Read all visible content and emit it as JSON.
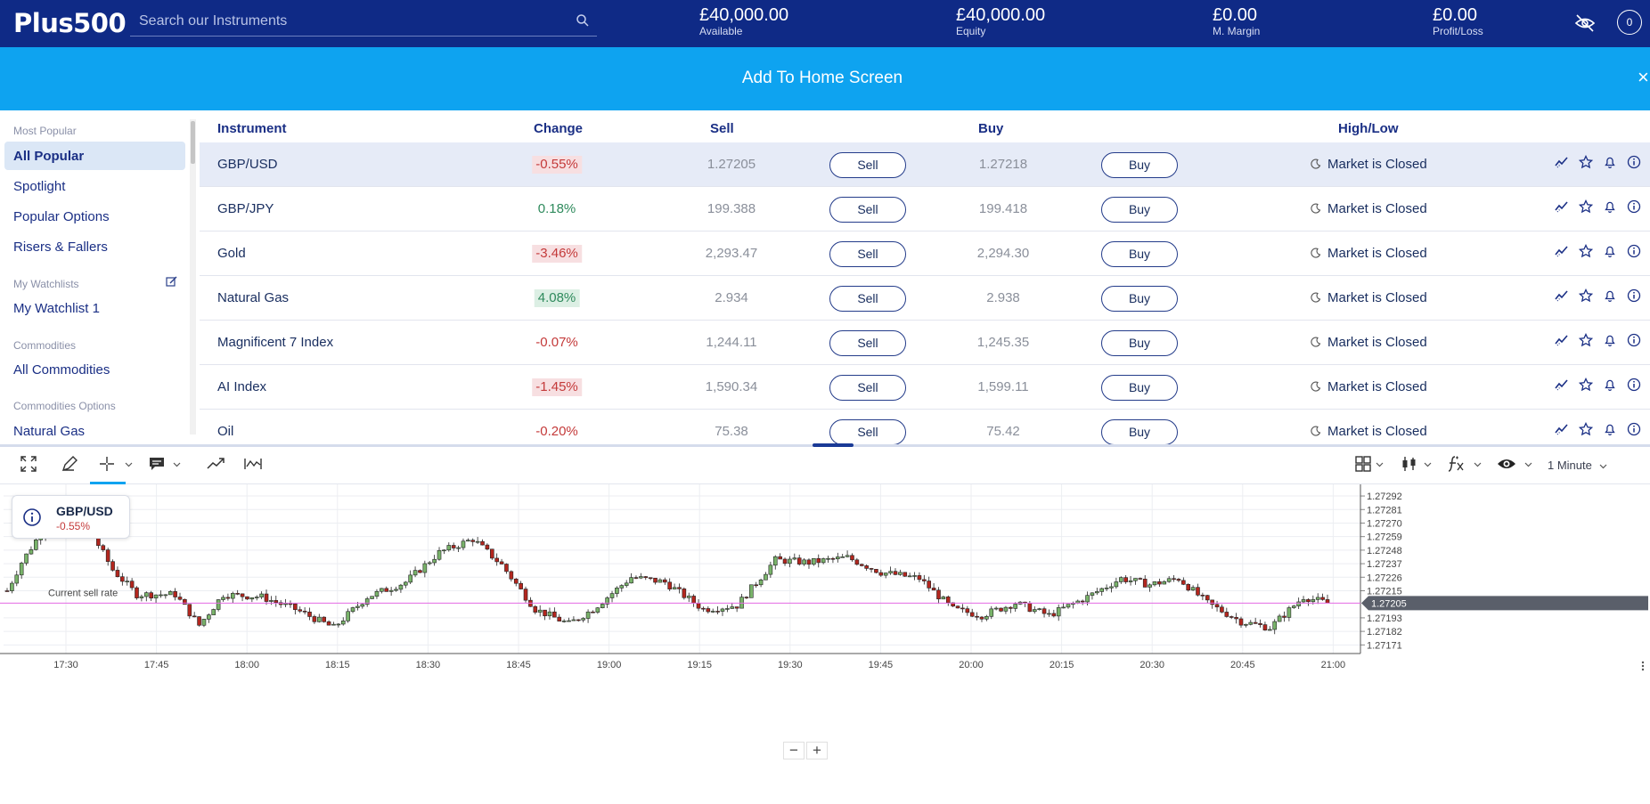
{
  "header": {
    "logo": "Plus500",
    "search_placeholder": "Search our Instruments",
    "stats": [
      {
        "value": "£40,000.00",
        "label": "Available"
      },
      {
        "value": "£40,000.00",
        "label": "Equity"
      },
      {
        "value": "£0.00",
        "label": "M. Margin"
      },
      {
        "value": "£0.00",
        "label": "Profit/Loss"
      }
    ],
    "notifications_count": "0"
  },
  "banner": {
    "text": "Add To Home Screen",
    "close": "×"
  },
  "sidebar": {
    "sections": [
      {
        "heading": "Most Popular",
        "items": [
          "All Popular",
          "Spotlight",
          "Popular Options",
          "Risers & Fallers"
        ]
      },
      {
        "heading": "My Watchlists",
        "items": [
          "My Watchlist 1"
        ]
      },
      {
        "heading": "Commodities",
        "items": [
          "All Commodities"
        ]
      },
      {
        "heading": "Commodities Options",
        "items": [
          "Natural Gas"
        ]
      }
    ],
    "active_item": "All Popular"
  },
  "table": {
    "columns": [
      "Instrument",
      "Change",
      "Sell",
      "Buy",
      "High/Low"
    ],
    "sell_label": "Sell",
    "buy_label": "Buy",
    "rows": [
      {
        "name": "GBP/USD",
        "change": "-0.55%",
        "trend": "neg",
        "badge": true,
        "sell": "1.27205",
        "buy": "1.27218",
        "status": "Market is Closed"
      },
      {
        "name": "GBP/JPY",
        "change": "0.18%",
        "trend": "pos",
        "badge": false,
        "sell": "199.388",
        "buy": "199.418",
        "status": "Market is Closed"
      },
      {
        "name": "Gold",
        "change": "-3.46%",
        "trend": "neg",
        "badge": true,
        "sell": "2,293.47",
        "buy": "2,294.30",
        "status": "Market is Closed"
      },
      {
        "name": "Natural Gas",
        "change": "4.08%",
        "trend": "pos",
        "badge": true,
        "sell": "2.934",
        "buy": "2.938",
        "status": "Market is Closed"
      },
      {
        "name": "Magnificent 7 Index",
        "change": "-0.07%",
        "trend": "neg",
        "badge": false,
        "sell": "1,244.11",
        "buy": "1,245.35",
        "status": "Market is Closed"
      },
      {
        "name": "AI Index",
        "change": "-1.45%",
        "trend": "neg",
        "badge": true,
        "sell": "1,590.34",
        "buy": "1,599.11",
        "status": "Market is Closed"
      },
      {
        "name": "Oil",
        "change": "-0.20%",
        "trend": "neg",
        "badge": false,
        "sell": "75.38",
        "buy": "75.42",
        "status": "Market is Closed"
      }
    ]
  },
  "toolbar": {
    "timeframe": "1 Minute"
  },
  "chart_card": {
    "symbol": "GBP/USD",
    "change": "-0.55%"
  },
  "chart_data": {
    "type": "candlestick",
    "x_ticks": [
      "17:30",
      "17:45",
      "18:00",
      "18:15",
      "18:30",
      "18:45",
      "19:00",
      "19:15",
      "19:30",
      "19:45",
      "20:00",
      "20:15",
      "20:30",
      "20:45",
      "21:00"
    ],
    "y_ticks": [
      "1.27292",
      "1.27281",
      "1.27270",
      "1.27259",
      "1.27248",
      "1.27237",
      "1.27226",
      "1.27215",
      "1.27193",
      "1.27182",
      "1.27171"
    ],
    "ylim": [
      1.27164,
      1.273
    ],
    "current_rate": 1.27205,
    "current_rate_label": "1.27205",
    "current_rate_caption": "Current sell rate",
    "bull_color": "#79b36a",
    "bear_color": "#b3261e",
    "line_color": "#e36ae3",
    "anchors": [
      [
        0,
        1.27215
      ],
      [
        3,
        1.27238
      ],
      [
        7,
        1.27262
      ],
      [
        10,
        1.27284
      ],
      [
        13,
        1.27262
      ],
      [
        18,
        1.27259
      ],
      [
        22,
        1.27232
      ],
      [
        27,
        1.27212
      ],
      [
        35,
        1.27212
      ],
      [
        40,
        1.27187
      ],
      [
        45,
        1.27212
      ],
      [
        53,
        1.2721
      ],
      [
        60,
        1.272
      ],
      [
        68,
        1.27185
      ],
      [
        75,
        1.2721
      ],
      [
        83,
        1.27222
      ],
      [
        90,
        1.27246
      ],
      [
        97,
        1.27257
      ],
      [
        103,
        1.27236
      ],
      [
        110,
        1.272
      ],
      [
        117,
        1.27188
      ],
      [
        122,
        1.272
      ],
      [
        130,
        1.27226
      ],
      [
        137,
        1.27222
      ],
      [
        145,
        1.272
      ],
      [
        152,
        1.27203
      ],
      [
        160,
        1.2724
      ],
      [
        167,
        1.27238
      ],
      [
        175,
        1.27242
      ],
      [
        182,
        1.2723
      ],
      [
        190,
        1.27225
      ],
      [
        197,
        1.272
      ],
      [
        203,
        1.27195
      ],
      [
        210,
        1.27205
      ],
      [
        217,
        1.27195
      ],
      [
        225,
        1.2721
      ],
      [
        232,
        1.27225
      ],
      [
        238,
        1.2722
      ],
      [
        244,
        1.27225
      ],
      [
        250,
        1.27205
      ],
      [
        257,
        1.2719
      ],
      [
        263,
        1.27185
      ],
      [
        270,
        1.2721
      ],
      [
        275,
        1.27205
      ]
    ]
  }
}
